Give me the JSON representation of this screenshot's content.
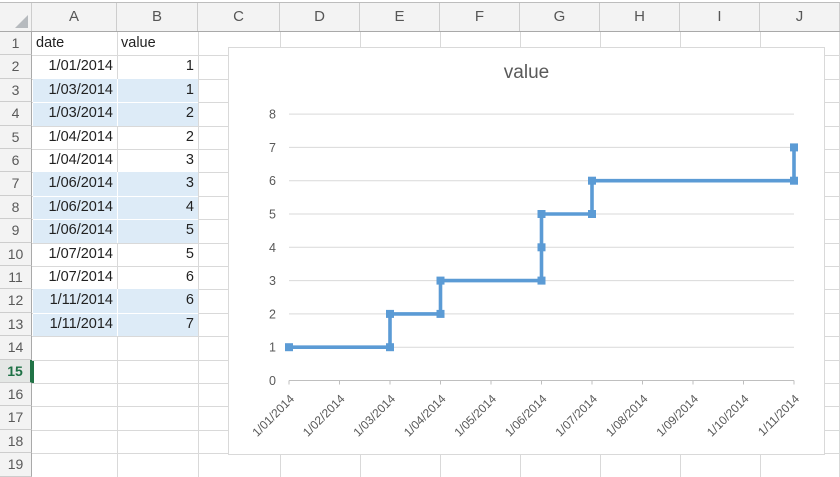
{
  "grid": {
    "corner_label": "",
    "columns": [
      "A",
      "B",
      "C",
      "D",
      "E",
      "F",
      "G",
      "H",
      "I",
      "J"
    ],
    "row_numbers": [
      "1",
      "2",
      "3",
      "4",
      "5",
      "6",
      "7",
      "8",
      "9",
      "10",
      "11",
      "12",
      "13",
      "14",
      "15",
      "16",
      "17",
      "18",
      "19"
    ],
    "selected_row": 15,
    "highlight_rows": [
      [
        3,
        4
      ],
      [
        7,
        9
      ],
      [
        12,
        13
      ]
    ],
    "table": {
      "header": [
        "date",
        "value"
      ],
      "rows": [
        [
          "1/01/2014",
          "1"
        ],
        [
          "1/03/2014",
          "1"
        ],
        [
          "1/03/2014",
          "2"
        ],
        [
          "1/04/2014",
          "2"
        ],
        [
          "1/04/2014",
          "3"
        ],
        [
          "1/06/2014",
          "3"
        ],
        [
          "1/06/2014",
          "4"
        ],
        [
          "1/06/2014",
          "5"
        ],
        [
          "1/07/2014",
          "5"
        ],
        [
          "1/07/2014",
          "6"
        ],
        [
          "1/11/2014",
          "6"
        ],
        [
          "1/11/2014",
          "7"
        ]
      ]
    },
    "colors": {
      "highlight": "#DDEBF7",
      "selection_green": "#217346",
      "gridline": "#D9D9D9"
    }
  },
  "chart_data": {
    "type": "line",
    "subtype": "step",
    "title": "value",
    "categories": [
      "1/01/2014",
      "1/02/2014",
      "1/03/2014",
      "1/04/2014",
      "1/05/2014",
      "1/06/2014",
      "1/07/2014",
      "1/08/2014",
      "1/09/2014",
      "1/10/2014",
      "1/11/2014"
    ],
    "series": [
      {
        "name": "value",
        "points": [
          [
            "1/01/2014",
            1
          ],
          [
            "1/03/2014",
            1
          ],
          [
            "1/03/2014",
            2
          ],
          [
            "1/04/2014",
            2
          ],
          [
            "1/04/2014",
            3
          ],
          [
            "1/06/2014",
            3
          ],
          [
            "1/06/2014",
            4
          ],
          [
            "1/06/2014",
            5
          ],
          [
            "1/07/2014",
            5
          ],
          [
            "1/07/2014",
            6
          ],
          [
            "1/11/2014",
            6
          ],
          [
            "1/11/2014",
            7
          ]
        ]
      }
    ],
    "ylim": [
      0,
      8
    ],
    "yticks": [
      0,
      1,
      2,
      3,
      4,
      5,
      6,
      7,
      8
    ],
    "xlabel": "",
    "ylabel": "",
    "grid": true,
    "legend": "none",
    "line_color": "#5B9BD5",
    "marker": "square",
    "text_color": "#595959",
    "axis_color": "#BFBFBF",
    "gridline_color": "#D9D9D9"
  }
}
